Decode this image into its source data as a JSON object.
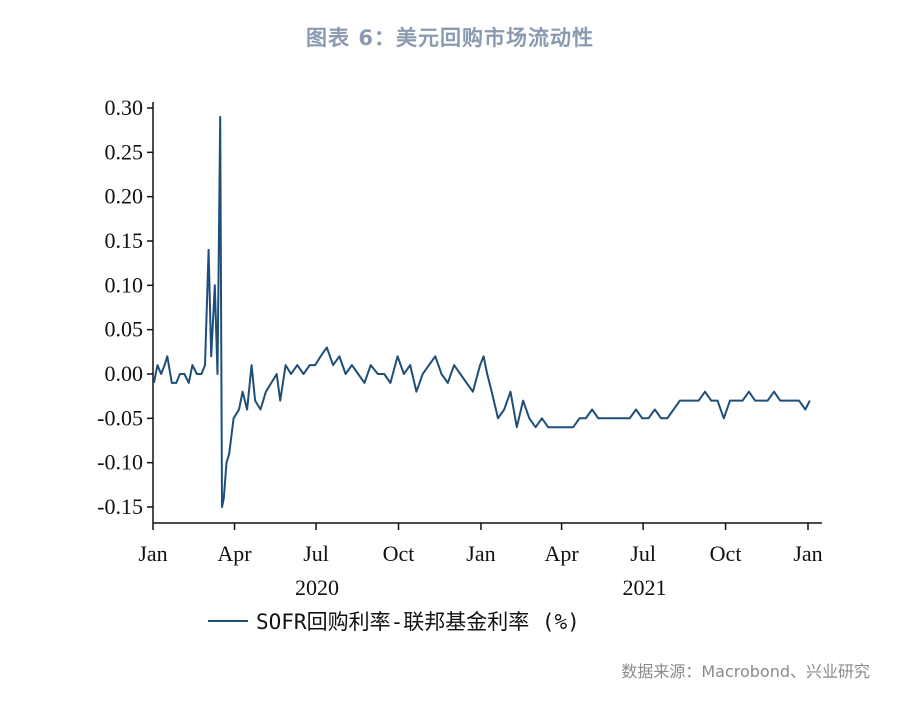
{
  "title": "图表 6：美元回购市场流动性",
  "source": "数据来源：Macrobond、兴业研究",
  "legend": {
    "label": "SOFR回购利率-联邦基金利率 (%)",
    "color": "#1f4e79"
  },
  "chart_data": {
    "type": "line",
    "title": "图表 6：美元回购市场流动性",
    "ylim": [
      -0.15,
      0.3
    ],
    "yticks": [
      "0.30",
      "0.25",
      "0.20",
      "0.15",
      "0.10",
      "0.05",
      "0.00",
      "-0.05",
      "-0.10",
      "-0.15"
    ],
    "xticks": [
      "Jan",
      "Apr",
      "Jul",
      "Oct",
      "Jan",
      "Apr",
      "Jul",
      "Oct",
      "Jan"
    ],
    "years": [
      "2020",
      "2021"
    ],
    "grid": false,
    "legend_position": "bottom",
    "series": [
      {
        "name": "SOFR回购利率-联邦基金利率 (%)",
        "color": "#1f4e79",
        "x": [
          "2020-01-02",
          "2020-01-06",
          "2020-01-10",
          "2020-01-14",
          "2020-01-17",
          "2020-01-22",
          "2020-01-27",
          "2020-01-31",
          "2020-02-05",
          "2020-02-10",
          "2020-02-14",
          "2020-02-19",
          "2020-02-24",
          "2020-02-28",
          "2020-03-03",
          "2020-03-06",
          "2020-03-10",
          "2020-03-13",
          "2020-03-16",
          "2020-03-18",
          "2020-03-20",
          "2020-03-23",
          "2020-03-26",
          "2020-03-31",
          "2020-04-06",
          "2020-04-10",
          "2020-04-15",
          "2020-04-20",
          "2020-04-24",
          "2020-04-30",
          "2020-05-06",
          "2020-05-12",
          "2020-05-18",
          "2020-05-22",
          "2020-05-28",
          "2020-06-03",
          "2020-06-10",
          "2020-06-17",
          "2020-06-24",
          "2020-06-30",
          "2020-07-06",
          "2020-07-13",
          "2020-07-20",
          "2020-07-27",
          "2020-08-03",
          "2020-08-10",
          "2020-08-17",
          "2020-08-24",
          "2020-08-31",
          "2020-09-08",
          "2020-09-15",
          "2020-09-22",
          "2020-09-30",
          "2020-10-07",
          "2020-10-14",
          "2020-10-21",
          "2020-10-28",
          "2020-11-04",
          "2020-11-11",
          "2020-11-18",
          "2020-11-25",
          "2020-12-02",
          "2020-12-09",
          "2020-12-16",
          "2020-12-23",
          "2020-12-31",
          "2021-01-04",
          "2021-01-08",
          "2021-01-13",
          "2021-01-20",
          "2021-01-27",
          "2021-02-03",
          "2021-02-10",
          "2021-02-17",
          "2021-02-24",
          "2021-03-03",
          "2021-03-10",
          "2021-03-17",
          "2021-03-24",
          "2021-03-31",
          "2021-04-07",
          "2021-04-14",
          "2021-04-21",
          "2021-04-28",
          "2021-05-05",
          "2021-05-12",
          "2021-05-19",
          "2021-05-26",
          "2021-06-02",
          "2021-06-09",
          "2021-06-16",
          "2021-06-23",
          "2021-06-30",
          "2021-07-07",
          "2021-07-14",
          "2021-07-21",
          "2021-07-28",
          "2021-08-04",
          "2021-08-11",
          "2021-08-18",
          "2021-08-25",
          "2021-09-01",
          "2021-09-08",
          "2021-09-15",
          "2021-09-22",
          "2021-09-29",
          "2021-10-06",
          "2021-10-13",
          "2021-10-20",
          "2021-10-27",
          "2021-11-03",
          "2021-11-10",
          "2021-11-17",
          "2021-11-24",
          "2021-12-01",
          "2021-12-08",
          "2021-12-15",
          "2021-12-22",
          "2021-12-29",
          "2022-01-03"
        ],
        "y": [
          -0.01,
          0.01,
          0.0,
          0.01,
          0.02,
          -0.01,
          -0.01,
          0.0,
          0.0,
          -0.01,
          0.01,
          0.0,
          0.0,
          0.01,
          0.14,
          0.02,
          0.1,
          0.0,
          0.29,
          -0.15,
          -0.14,
          -0.1,
          -0.09,
          -0.05,
          -0.04,
          -0.02,
          -0.04,
          0.01,
          -0.03,
          -0.04,
          -0.02,
          -0.01,
          0.0,
          -0.03,
          0.01,
          0.0,
          0.01,
          0.0,
          0.01,
          0.01,
          0.02,
          0.03,
          0.01,
          0.02,
          0.0,
          0.01,
          0.0,
          -0.01,
          0.01,
          0.0,
          0.0,
          -0.01,
          0.02,
          0.0,
          0.01,
          -0.02,
          0.0,
          0.01,
          0.02,
          0.0,
          -0.01,
          0.01,
          0.0,
          -0.01,
          -0.02,
          0.01,
          0.02,
          0.0,
          -0.02,
          -0.05,
          -0.04,
          -0.02,
          -0.06,
          -0.03,
          -0.05,
          -0.06,
          -0.05,
          -0.06,
          -0.06,
          -0.06,
          -0.06,
          -0.06,
          -0.05,
          -0.05,
          -0.04,
          -0.05,
          -0.05,
          -0.05,
          -0.05,
          -0.05,
          -0.05,
          -0.04,
          -0.05,
          -0.05,
          -0.04,
          -0.05,
          -0.05,
          -0.04,
          -0.03,
          -0.03,
          -0.03,
          -0.03,
          -0.02,
          -0.03,
          -0.03,
          -0.05,
          -0.03,
          -0.03,
          -0.03,
          -0.02,
          -0.03,
          -0.03,
          -0.03,
          -0.02,
          -0.03,
          -0.03,
          -0.03,
          -0.03,
          -0.04,
          -0.03
        ]
      }
    ]
  }
}
